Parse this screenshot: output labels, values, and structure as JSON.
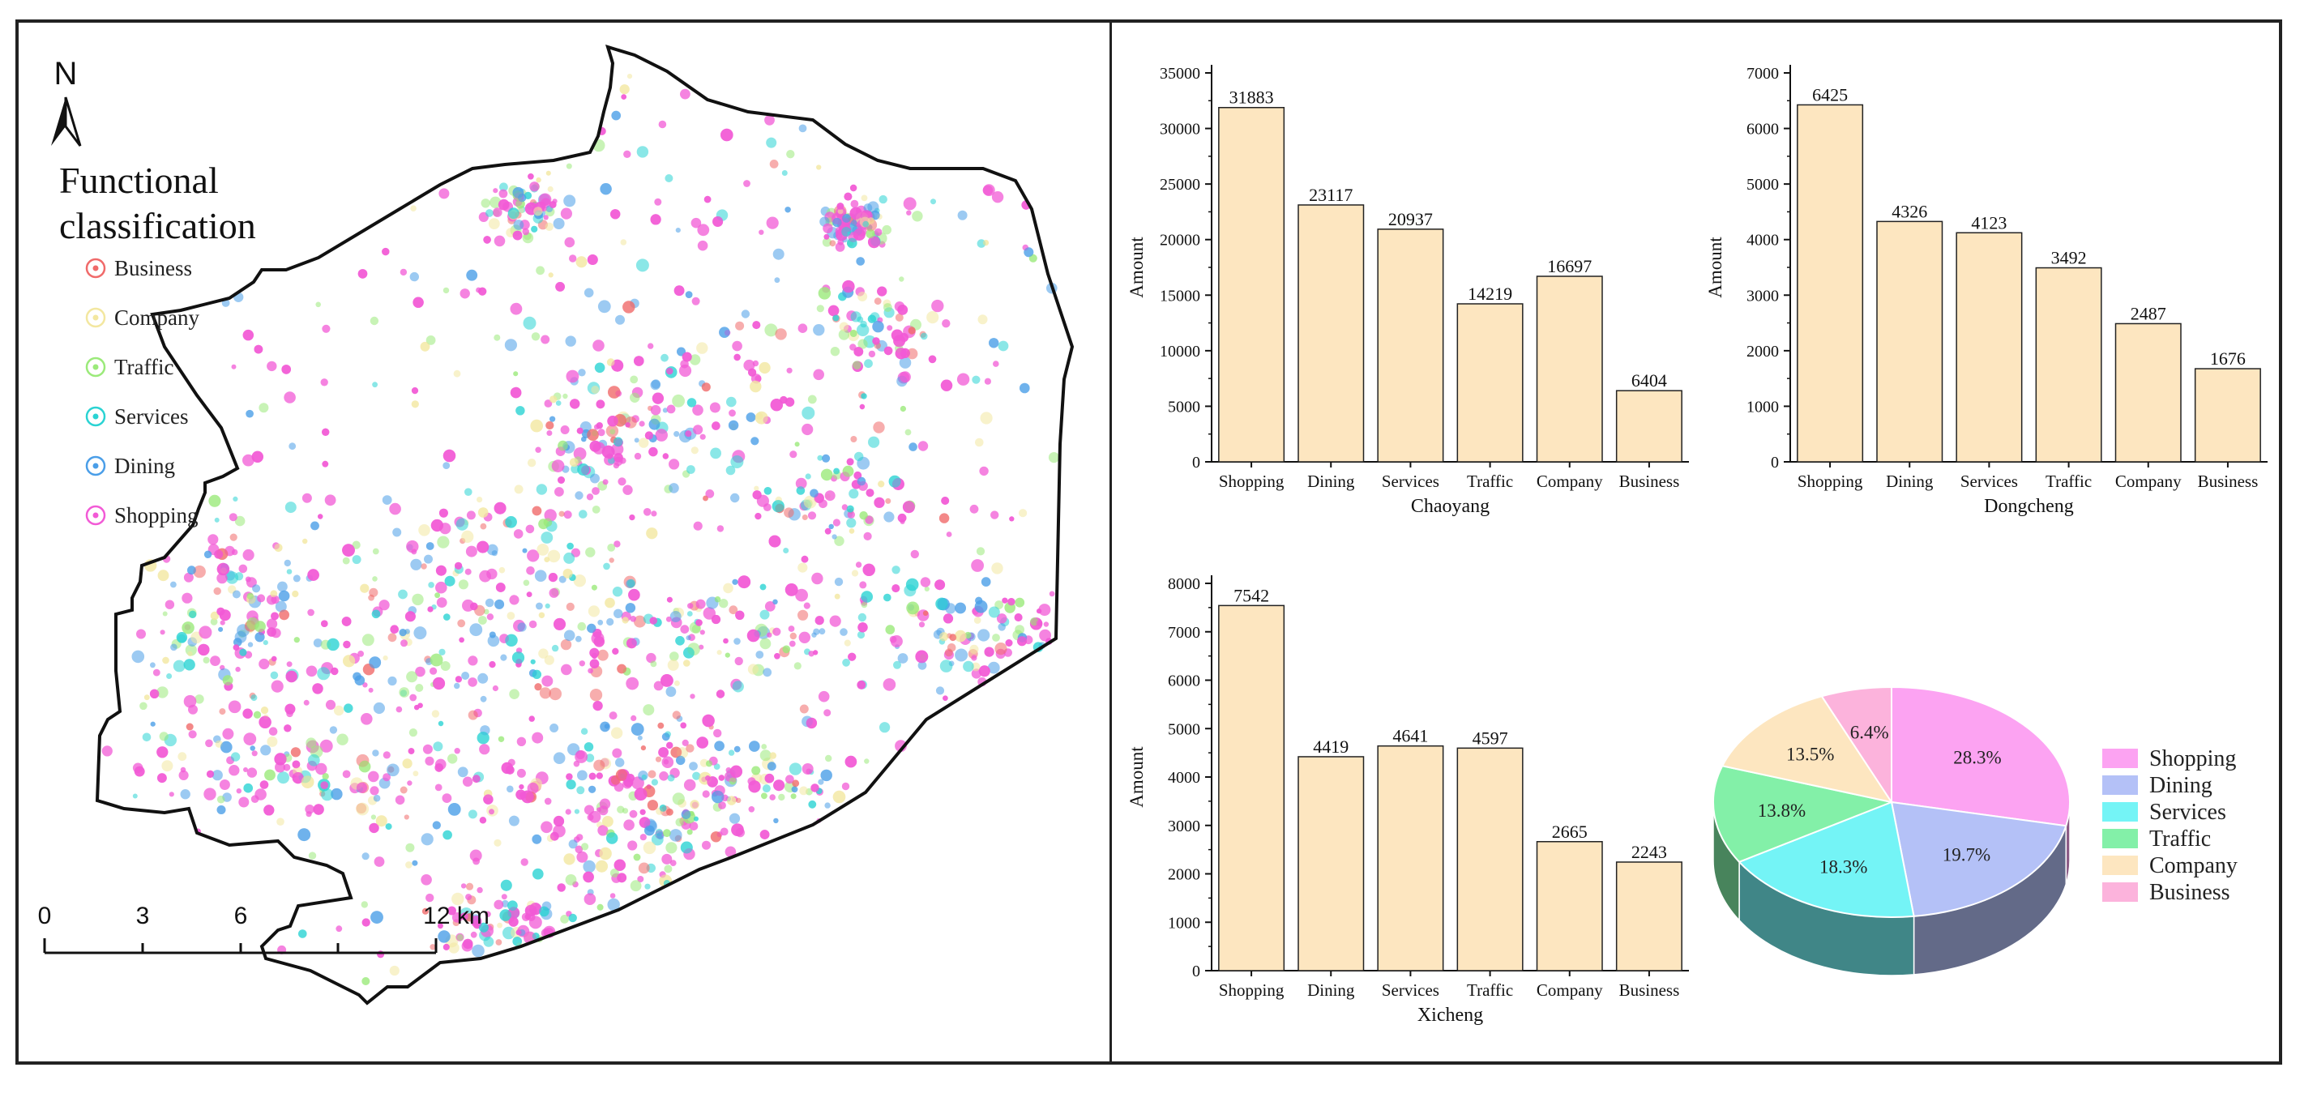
{
  "map": {
    "north_label": "N",
    "legend_title_line1": "Functional",
    "legend_title_line2": "classification",
    "legend_items": [
      {
        "label": "Business",
        "color": "#f06a6a"
      },
      {
        "label": "Company",
        "color": "#f3e7a0"
      },
      {
        "label": "Traffic",
        "color": "#9bea7a"
      },
      {
        "label": "Services",
        "color": "#2ad3d3"
      },
      {
        "label": "Dining",
        "color": "#4a9ee8"
      },
      {
        "label": "Shopping",
        "color": "#f25ad6"
      }
    ],
    "scale_labels": [
      "0",
      "3",
      "6",
      "12 km"
    ]
  },
  "chart_data": [
    {
      "type": "bar",
      "xlabel": "Chaoyang",
      "ylabel": "Amount",
      "categories": [
        "Shopping",
        "Dining",
        "Services",
        "Traffic",
        "Company",
        "Business"
      ],
      "values": [
        31883,
        23117,
        20937,
        14219,
        16697,
        6404
      ],
      "ylim": [
        0,
        35000
      ],
      "yticks": [
        0,
        5000,
        10000,
        15000,
        20000,
        25000,
        30000,
        35000
      ],
      "bar_color": "#fde6c0"
    },
    {
      "type": "bar",
      "xlabel": "Dongcheng",
      "ylabel": "Amount",
      "categories": [
        "Shopping",
        "Dining",
        "Services",
        "Traffic",
        "Company",
        "Business"
      ],
      "values": [
        6425,
        4326,
        4123,
        3492,
        2487,
        1676
      ],
      "ylim": [
        0,
        7000
      ],
      "yticks": [
        0,
        1000,
        2000,
        3000,
        4000,
        5000,
        6000,
        7000
      ],
      "bar_color": "#fde6c0"
    },
    {
      "type": "bar",
      "xlabel": "Xicheng",
      "ylabel": "Amount",
      "categories": [
        "Shopping",
        "Dining",
        "Services",
        "Traffic",
        "Company",
        "Business"
      ],
      "values": [
        7542,
        4419,
        4641,
        4597,
        2665,
        2243
      ],
      "ylim": [
        0,
        8000
      ],
      "yticks": [
        0,
        1000,
        2000,
        3000,
        4000,
        5000,
        6000,
        7000,
        8000
      ],
      "bar_color": "#fde6c0"
    },
    {
      "type": "pie",
      "slices": [
        {
          "label": "Shopping",
          "value": 28.3,
          "text": "28.3%",
          "color": "#fca3f2"
        },
        {
          "label": "Dining",
          "value": 19.7,
          "text": "19.7%",
          "color": "#b4c1f7"
        },
        {
          "label": "Services",
          "value": 18.3,
          "text": "18.3%",
          "color": "#74f4f6"
        },
        {
          "label": "Traffic",
          "value": 13.8,
          "text": "13.8%",
          "color": "#83f0a8"
        },
        {
          "label": "Company",
          "value": 13.5,
          "text": "13.5%",
          "color": "#fde6c0"
        },
        {
          "label": "Business",
          "value": 6.4,
          "text": "6.4%",
          "color": "#fcb3dc"
        }
      ],
      "legend_placement": "right"
    }
  ]
}
